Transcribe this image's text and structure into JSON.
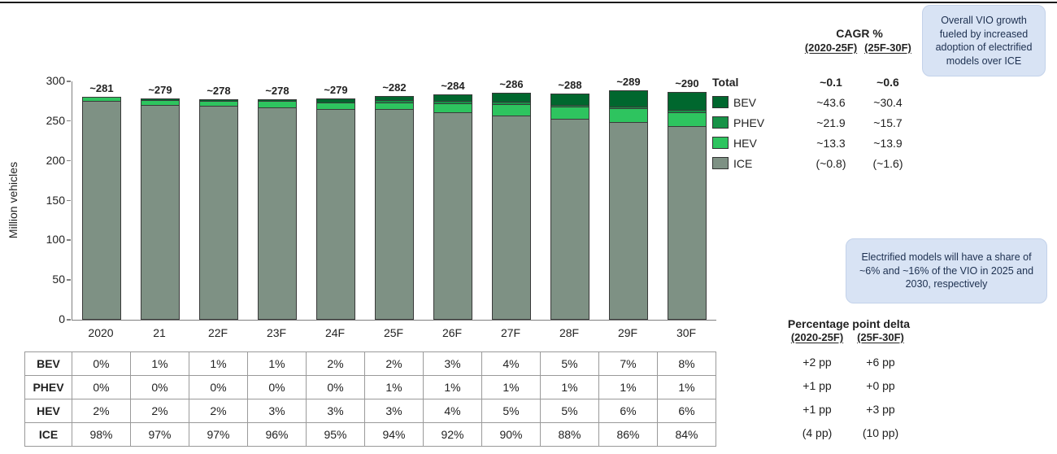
{
  "chart_data": {
    "type": "bar",
    "stacked": true,
    "ylabel": "Million vehicles",
    "ylim": [
      0,
      300
    ],
    "yticks": [
      0,
      50,
      100,
      150,
      200,
      250,
      300
    ],
    "grid": false,
    "legend_position": "right",
    "categories": [
      "2020",
      "21",
      "22F",
      "23F",
      "24F",
      "25F",
      "26F",
      "27F",
      "28F",
      "29F",
      "30F"
    ],
    "totals": [
      281,
      279,
      278,
      278,
      279,
      282,
      284,
      286,
      288,
      289,
      290
    ],
    "total_labels": [
      "~281",
      "~279",
      "~278",
      "~278",
      "~279",
      "~282",
      "~284",
      "~286",
      "~288",
      "~289",
      "~290"
    ],
    "series": [
      {
        "name": "BEV",
        "color": "#00672e",
        "share_pct": [
          0,
          1,
          1,
          1,
          2,
          2,
          3,
          4,
          5,
          7,
          8
        ]
      },
      {
        "name": "PHEV",
        "color": "#179247",
        "share_pct": [
          0,
          0,
          0,
          0,
          0,
          1,
          1,
          1,
          1,
          1,
          1
        ]
      },
      {
        "name": "HEV",
        "color": "#2ec45f",
        "share_pct": [
          2,
          2,
          2,
          3,
          3,
          3,
          4,
          5,
          5,
          6,
          6
        ]
      },
      {
        "name": "ICE",
        "color": "#7e9184",
        "share_pct": [
          98,
          97,
          97,
          96,
          95,
          94,
          92,
          90,
          88,
          86,
          84
        ]
      }
    ],
    "share_unit": "%"
  },
  "cagr_panel": {
    "title": "CAGR %",
    "col_headers": [
      "(2020-25F)",
      "(25F-30F)"
    ],
    "rows": [
      {
        "label": "Total",
        "bold": true,
        "values": [
          "~0.1",
          "~0.6"
        ]
      },
      {
        "label": "BEV",
        "values": [
          "~43.6",
          "~30.4"
        ]
      },
      {
        "label": "PHEV",
        "values": [
          "~21.9",
          "~15.7"
        ]
      },
      {
        "label": "HEV",
        "values": [
          "~13.3",
          "~13.9"
        ]
      },
      {
        "label": "ICE",
        "values": [
          "(~0.8)",
          "(~1.6)"
        ]
      }
    ]
  },
  "delta_panel": {
    "title": "Percentage point delta",
    "col_headers": [
      "(2020-25F)",
      "(25F-30F)"
    ],
    "rows": [
      {
        "label": "BEV",
        "values": [
          "+2 pp",
          "+6 pp"
        ]
      },
      {
        "label": "PHEV",
        "values": [
          "+1 pp",
          "+0 pp"
        ]
      },
      {
        "label": "HEV",
        "values": [
          "+1 pp",
          "+3 pp"
        ]
      },
      {
        "label": "ICE",
        "values": [
          "(4 pp)",
          "(10 pp)"
        ]
      }
    ]
  },
  "callouts": [
    {
      "text": "Overall VIO growth fueled by increased adoption of electrified models over ICE"
    },
    {
      "text": "Electrified models will have a share of ~6% and ~16% of the VIO in 2025 and 2030, respectively"
    }
  ],
  "colors": {
    "bev": "#00672e",
    "phev": "#179247",
    "hev": "#2ec45f",
    "ice": "#7e9184",
    "bar_outline": "#3a3a3a",
    "axis": "#808080",
    "table_border": "#9a9a9a",
    "callout_bg": "#d8e3f4",
    "callout_text": "#1d3050"
  }
}
